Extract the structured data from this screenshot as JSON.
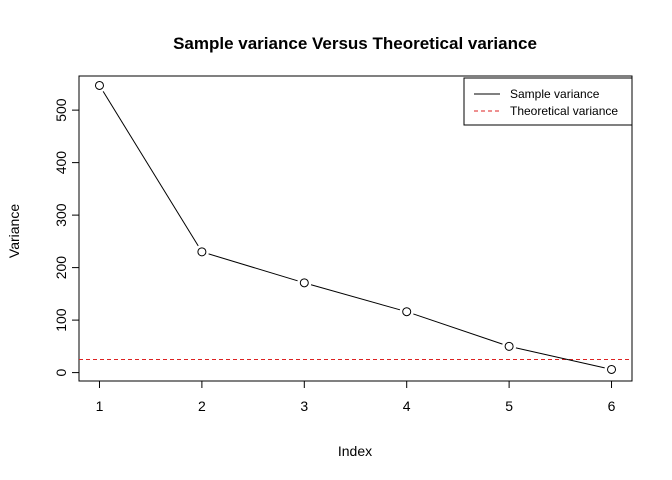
{
  "chart_data": {
    "type": "line",
    "title": "Sample variance Versus Theoretical variance",
    "xlabel": "Index",
    "ylabel": "Variance",
    "x": [
      1,
      2,
      3,
      4,
      5,
      6
    ],
    "xlim": [
      0.8,
      6.2
    ],
    "ylim": [
      -16,
      565
    ],
    "xticks": [
      1,
      2,
      3,
      4,
      5,
      6
    ],
    "yticks": [
      0,
      100,
      200,
      300,
      400,
      500
    ],
    "grid": false,
    "legend_position": "top-right",
    "series": [
      {
        "name": "Sample variance",
        "values": [
          547,
          230,
          171,
          116,
          50,
          6
        ],
        "color": "#000000",
        "line_style": "solid",
        "markers": "open-circle"
      }
    ],
    "reference_lines": [
      {
        "name": "Theoretical variance",
        "y": 25,
        "color": "#dd2222",
        "line_style": "dashed"
      }
    ]
  }
}
